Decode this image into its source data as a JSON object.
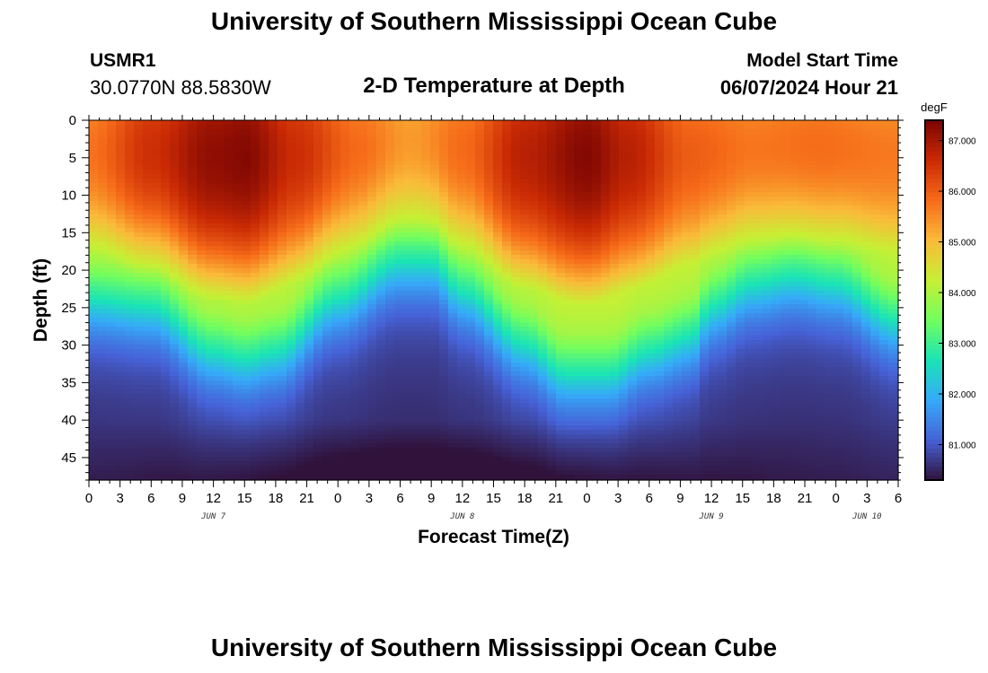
{
  "header": {
    "title": "University of Southern Mississippi Ocean Cube",
    "station_id": "USMR1",
    "station_coords": "30.0770N  88.5830W",
    "subtitle": "2-D Temperature at Depth",
    "model_label": "Model Start Time",
    "model_time": "06/07/2024 Hour 21"
  },
  "footer": {
    "title": "University of Southern Mississippi Ocean Cube"
  },
  "chart_data": {
    "type": "heatmap",
    "title": "2-D Temperature at Depth",
    "xlabel": "Forecast Time(Z)",
    "ylabel": "Depth (ft)",
    "x_range_hours": [
      0,
      78
    ],
    "x_ticks": [
      "0",
      "3",
      "6",
      "9",
      "12",
      "15",
      "18",
      "21",
      "0",
      "3",
      "6",
      "9",
      "12",
      "15",
      "18",
      "21",
      "0",
      "3",
      "6",
      "9",
      "12",
      "15",
      "18",
      "21",
      "0",
      "3",
      "6"
    ],
    "day_labels": [
      {
        "label": "JUN 7",
        "hour": 12
      },
      {
        "label": "JUN 8",
        "hour": 36
      },
      {
        "label": "JUN 9",
        "hour": 60
      },
      {
        "label": "JUN 10",
        "hour": 75
      }
    ],
    "y_range_ft": [
      0,
      48
    ],
    "y_ticks": [
      0,
      5,
      10,
      15,
      20,
      25,
      30,
      35,
      40,
      45
    ],
    "colorbar": {
      "unit": "degF",
      "range": [
        80.3,
        87.4
      ],
      "ticks": [
        "81.000",
        "82.000",
        "83.000",
        "84.000",
        "85.000",
        "86.000",
        "87.000"
      ]
    },
    "colormap": [
      "#30123b",
      "#4662d7",
      "#36aaf9",
      "#1ae4b6",
      "#72fe5e",
      "#c7ef34",
      "#faba39",
      "#f66b19",
      "#ca2a04",
      "#7a0403"
    ],
    "thermocline_depth_ft_by_hour": [
      [
        0,
        19
      ],
      [
        6,
        20
      ],
      [
        12,
        26
      ],
      [
        15,
        27
      ],
      [
        18,
        26
      ],
      [
        24,
        19
      ],
      [
        30,
        14
      ],
      [
        33,
        14
      ],
      [
        36,
        18
      ],
      [
        42,
        25
      ],
      [
        46,
        29
      ],
      [
        50,
        29
      ],
      [
        54,
        26
      ],
      [
        58,
        24
      ],
      [
        60,
        20
      ],
      [
        64,
        17
      ],
      [
        68,
        16
      ],
      [
        72,
        17
      ],
      [
        78,
        22
      ]
    ],
    "surface_temp_degF_by_hour": [
      [
        0,
        85.8
      ],
      [
        6,
        86.6
      ],
      [
        12,
        87.2
      ],
      [
        15,
        87.3
      ],
      [
        20,
        86.6
      ],
      [
        26,
        85.9
      ],
      [
        31,
        85.5
      ],
      [
        36,
        85.9
      ],
      [
        42,
        86.8
      ],
      [
        48,
        87.3
      ],
      [
        52,
        86.8
      ],
      [
        58,
        86.0
      ],
      [
        64,
        85.8
      ],
      [
        70,
        85.9
      ],
      [
        78,
        85.7
      ]
    ],
    "bottom_temp_degF": 80.4,
    "bottom_cold_amplitude_degF": 0.5
  }
}
